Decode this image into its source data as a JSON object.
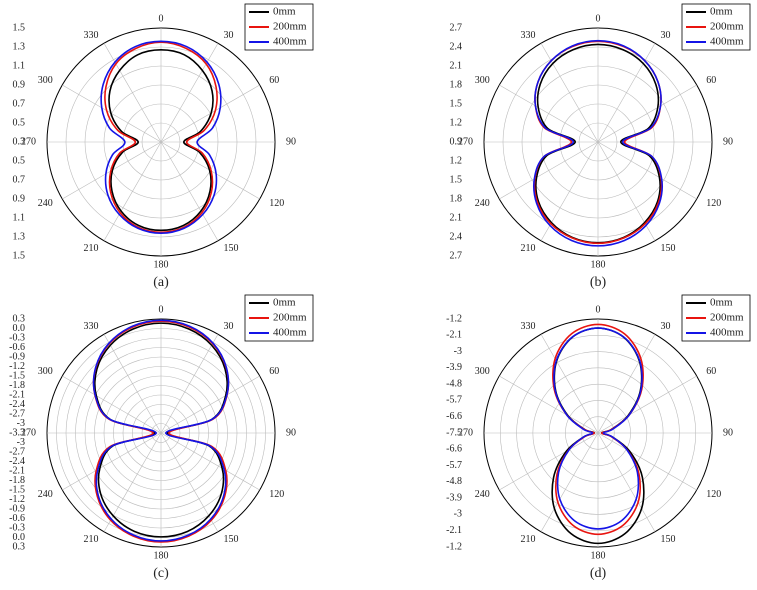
{
  "chart_data": [
    {
      "type": "polar",
      "label": "(a)",
      "legend": "upper right",
      "theta": [
        0,
        15,
        30,
        45,
        60,
        75,
        90,
        105,
        120,
        135,
        150,
        165,
        180,
        195,
        210,
        225,
        240,
        255,
        270,
        285,
        300,
        315,
        330,
        345
      ],
      "thetaticks": [
        0,
        30,
        60,
        90,
        120,
        150,
        180,
        210,
        240,
        270,
        300,
        330
      ],
      "rlim": [
        0.3,
        1.5
      ],
      "rticks": [
        0.3,
        0.5,
        0.7,
        0.9,
        1.1,
        1.3,
        1.5
      ],
      "series": [
        {
          "name": "0mm",
          "color": "#000000",
          "values": [
            1.27,
            1.25,
            1.17,
            1.06,
            0.91,
            0.73,
            0.54,
            0.72,
            0.89,
            1.03,
            1.14,
            1.21,
            1.23,
            1.21,
            1.14,
            1.03,
            0.89,
            0.72,
            0.54,
            0.73,
            0.91,
            1.06,
            1.17,
            1.25
          ]
        },
        {
          "name": "200mm",
          "color": "#e8140f",
          "values": [
            1.35,
            1.32,
            1.25,
            1.12,
            0.96,
            0.77,
            0.57,
            0.75,
            0.91,
            1.05,
            1.16,
            1.23,
            1.25,
            1.23,
            1.16,
            1.05,
            0.91,
            0.75,
            0.57,
            0.77,
            0.96,
            1.12,
            1.25,
            1.32
          ]
        },
        {
          "name": "400mm",
          "color": "#1414e6",
          "values": [
            1.36,
            1.34,
            1.27,
            1.16,
            1.02,
            0.86,
            0.68,
            0.83,
            0.97,
            1.09,
            1.18,
            1.24,
            1.26,
            1.24,
            1.18,
            1.09,
            0.97,
            0.83,
            0.68,
            0.86,
            1.02,
            1.16,
            1.27,
            1.34
          ]
        }
      ]
    },
    {
      "type": "polar",
      "label": "(b)",
      "legend": "upper right",
      "theta": [
        0,
        15,
        30,
        45,
        60,
        75,
        90,
        105,
        120,
        135,
        150,
        165,
        180,
        195,
        210,
        225,
        240,
        255,
        270,
        285,
        300,
        315,
        330,
        345
      ],
      "thetaticks": [
        0,
        30,
        60,
        90,
        120,
        150,
        180,
        210,
        240,
        270,
        300,
        330
      ],
      "rlim": [
        0.9,
        2.7
      ],
      "rticks": [
        0.9,
        1.2,
        1.5,
        1.8,
        2.1,
        2.4,
        2.7
      ],
      "series": [
        {
          "name": "0mm",
          "color": "#000000",
          "values": [
            2.44,
            2.41,
            2.33,
            2.19,
            1.99,
            1.72,
            1.26,
            1.74,
            2.02,
            2.23,
            2.37,
            2.46,
            2.49,
            2.46,
            2.37,
            2.23,
            2.02,
            1.74,
            1.26,
            1.72,
            1.99,
            2.19,
            2.33,
            2.41
          ]
        },
        {
          "name": "200mm",
          "color": "#e8140f",
          "values": [
            2.49,
            2.46,
            2.38,
            2.24,
            2.04,
            1.78,
            1.32,
            1.78,
            2.05,
            2.25,
            2.39,
            2.47,
            2.5,
            2.47,
            2.39,
            2.25,
            2.05,
            1.78,
            1.32,
            1.78,
            2.04,
            2.24,
            2.38,
            2.46
          ]
        },
        {
          "name": "400mm",
          "color": "#1414e6",
          "values": [
            2.5,
            2.47,
            2.38,
            2.24,
            2.04,
            1.76,
            1.29,
            1.78,
            2.06,
            2.27,
            2.42,
            2.51,
            2.54,
            2.51,
            2.42,
            2.27,
            2.06,
            1.78,
            1.29,
            1.76,
            2.04,
            2.24,
            2.38,
            2.47
          ]
        }
      ]
    },
    {
      "type": "polar",
      "label": "(c)",
      "legend": "upper right",
      "theta": [
        0,
        15,
        30,
        45,
        60,
        75,
        90,
        105,
        120,
        135,
        150,
        165,
        180,
        195,
        210,
        225,
        240,
        255,
        270,
        285,
        300,
        315,
        330,
        345
      ],
      "thetaticks": [
        0,
        30,
        60,
        90,
        120,
        150,
        180,
        210,
        240,
        270,
        300,
        330
      ],
      "rlim": [
        -3.3,
        0.3
      ],
      "rticks": [
        -3.3,
        -3.0,
        -2.7,
        -2.4,
        -2.1,
        -1.8,
        -1.5,
        -1.2,
        -0.9,
        -0.6,
        -0.3,
        {
          "value": 0,
          "label": "0.0"
        },
        0.3
      ],
      "series": [
        {
          "name": "0mm",
          "color": "#000000",
          "values": [
            0.17,
            0.1,
            -0.1,
            -0.44,
            -0.94,
            -1.64,
            -3.1,
            -1.73,
            -1.07,
            -0.6,
            -0.28,
            -0.08,
            -0.02,
            -0.08,
            -0.28,
            -0.6,
            -1.07,
            -1.73,
            -3.1,
            -1.64,
            -0.94,
            -0.44,
            -0.1,
            0.1
          ]
        },
        {
          "name": "200mm",
          "color": "#e8140f",
          "values": [
            0.23,
            0.16,
            -0.04,
            -0.39,
            -0.89,
            -1.59,
            -3.05,
            -1.63,
            -0.94,
            -0.46,
            -0.12,
            0.07,
            0.14,
            0.07,
            -0.12,
            -0.46,
            -0.94,
            -1.63,
            -3.05,
            -1.59,
            -0.89,
            -0.39,
            -0.04,
            0.16
          ]
        },
        {
          "name": "400mm",
          "color": "#1414e6",
          "values": [
            0.26,
            0.19,
            -0.02,
            -0.38,
            -0.9,
            -1.63,
            -3.15,
            -1.7,
            -1.0,
            -0.5,
            -0.16,
            0.04,
            0.11,
            0.04,
            -0.16,
            -0.5,
            -1.0,
            -1.7,
            -3.15,
            -1.63,
            -0.9,
            -0.38,
            -0.02,
            0.19
          ]
        }
      ]
    },
    {
      "type": "polar",
      "label": "(d)",
      "legend": "upper right",
      "theta": [
        0,
        15,
        30,
        45,
        60,
        75,
        90,
        105,
        120,
        135,
        150,
        165,
        180,
        195,
        210,
        225,
        240,
        255,
        270,
        285,
        300,
        315,
        330,
        345
      ],
      "thetaticks": [
        0,
        30,
        60,
        90,
        120,
        150,
        180,
        210,
        240,
        270,
        300,
        330
      ],
      "rlim": [
        -7.5,
        -1.2
      ],
      "rticks": [
        -7.5,
        -6.6,
        -5.7,
        -4.8,
        -3.9,
        -3.0,
        -2.1,
        -1.2
      ],
      "series": [
        {
          "name": "0mm",
          "color": "#000000",
          "values": [
            -1.7,
            -2.02,
            -2.92,
            -4.19,
            -5.58,
            -6.73,
            -7.3,
            -6.7,
            -5.48,
            -4.03,
            -2.68,
            -1.74,
            -1.4,
            -1.74,
            -2.68,
            -4.03,
            -5.48,
            -6.7,
            -7.3,
            -6.73,
            -5.58,
            -4.19,
            -2.92,
            -2.02
          ]
        },
        {
          "name": "200mm",
          "color": "#e8140f",
          "values": [
            -1.5,
            -1.83,
            -2.76,
            -4.08,
            -5.51,
            -6.71,
            -7.3,
            -6.75,
            -5.64,
            -4.3,
            -3.07,
            -2.21,
            -1.9,
            -2.21,
            -3.07,
            -4.3,
            -5.64,
            -6.75,
            -7.3,
            -6.71,
            -5.51,
            -4.08,
            -2.76,
            -1.83
          ]
        },
        {
          "name": "400mm",
          "color": "#1414e6",
          "values": [
            -1.7,
            -2.01,
            -2.89,
            -4.15,
            -5.51,
            -6.64,
            -7.2,
            -6.69,
            -5.66,
            -4.42,
            -3.28,
            -2.48,
            -2.2,
            -2.48,
            -3.28,
            -4.42,
            -5.66,
            -6.69,
            -7.2,
            -6.64,
            -5.51,
            -4.15,
            -2.89,
            -2.01
          ]
        }
      ]
    }
  ]
}
